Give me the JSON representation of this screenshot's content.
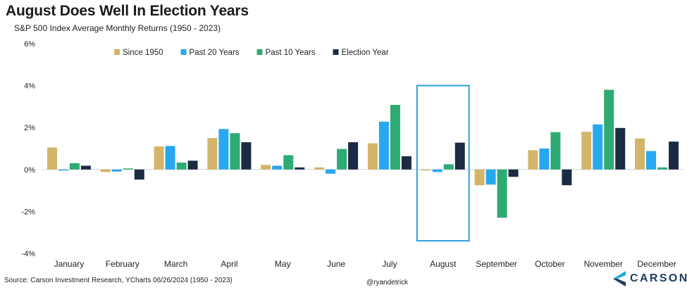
{
  "title": "August Does Well In Election Years",
  "subtitle": "S&P 500 Index Average Monthly Returns (1950 - 2023)",
  "source": "Source: Carson Investment Research, YCharts 06/26/2024 (1950 - 2023)",
  "handle": "@ryandetrick",
  "brand": "CARSON",
  "colors": {
    "since_1950": "#d3b56a",
    "past_20": "#27a8f0",
    "past_10": "#2eaa73",
    "election": "#1b2b44",
    "highlight_box": "#2aa0dc",
    "brand_mark_top": "#1fa9e1",
    "brand_mark_bottom": "#1e3a5f"
  },
  "chart_data": {
    "type": "bar",
    "title": "August Does Well In Election Years",
    "subtitle": "S&P 500 Index Average Monthly Returns (1950 - 2023)",
    "categories": [
      "January",
      "February",
      "March",
      "April",
      "May",
      "June",
      "July",
      "August",
      "September",
      "October",
      "November",
      "December"
    ],
    "y_tick_labels": [
      "-4%",
      "-2%",
      "0%",
      "2%",
      "4%",
      "6%"
    ],
    "y_ticks": [
      -4,
      -2,
      0,
      2,
      4,
      6
    ],
    "ylim": [
      -4,
      6
    ],
    "grid": false,
    "legend_position": "top",
    "highlighted_category": "August",
    "series": [
      {
        "name": "Since 1950",
        "values": [
          1.05,
          -0.12,
          1.1,
          1.5,
          0.22,
          0.1,
          1.25,
          -0.05,
          -0.75,
          0.92,
          1.8,
          1.48
        ]
      },
      {
        "name": "Past 20 Years",
        "values": [
          -0.05,
          -0.1,
          1.12,
          1.93,
          0.18,
          -0.2,
          2.28,
          -0.12,
          -0.72,
          1.0,
          2.15,
          0.88
        ]
      },
      {
        "name": "Past 10 Years",
        "values": [
          0.3,
          0.05,
          0.33,
          1.73,
          0.68,
          0.98,
          3.08,
          0.25,
          -2.3,
          1.78,
          3.8,
          0.1
        ]
      },
      {
        "name": "Election Year",
        "values": [
          0.18,
          -0.48,
          0.42,
          1.3,
          0.1,
          1.3,
          0.63,
          1.28,
          -0.35,
          -0.75,
          1.98,
          1.33
        ]
      }
    ]
  }
}
